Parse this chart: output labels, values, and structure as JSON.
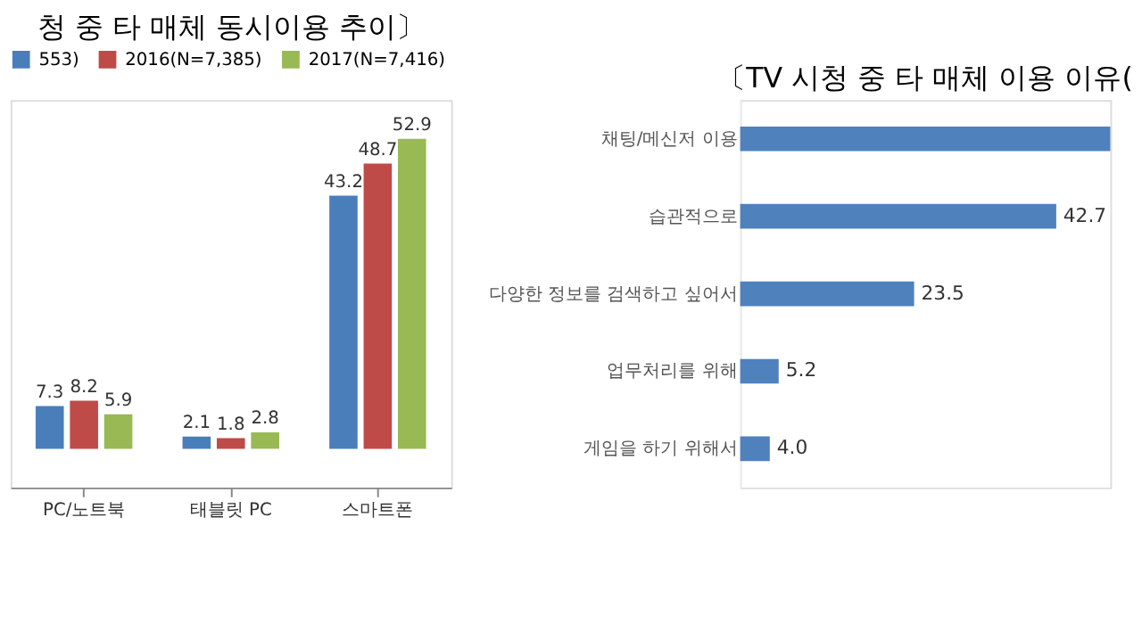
{
  "chart_data": [
    {
      "type": "bar",
      "title": "청 중 타 매체 동시이용 추이〕",
      "categories": [
        "PC/노트북",
        "태블릿 PC",
        "스마트폰"
      ],
      "legend": "top",
      "data_labels": true,
      "series": [
        {
          "name": "553)",
          "color": "#4a7ebb",
          "values": [
            7.3,
            2.1,
            43.2
          ]
        },
        {
          "name": "2016(N=7,385)",
          "color": "#be4b48",
          "values": [
            8.2,
            1.8,
            48.7
          ]
        },
        {
          "name": "2017(N=7,416)",
          "color": "#98b954",
          "values": [
            5.9,
            2.8,
            52.9
          ]
        }
      ]
    },
    {
      "type": "bar",
      "orientation": "horizontal",
      "title": "〔TV 시청 중 타 매체 이용 이유(",
      "categories": [
        "채팅/메신저 이용",
        "습관적으로",
        "다양한 정보를 검색하고 싶어서",
        "업무처리를 위해",
        "게임을 하기 위해서"
      ],
      "series": [
        {
          "color": "#4f81bd",
          "values": [
            50,
            42.7,
            23.5,
            5.2,
            4.0
          ],
          "value_labels": [
            null,
            "42.7",
            "23.5",
            "5.2",
            "4.0"
          ]
        }
      ]
    }
  ]
}
